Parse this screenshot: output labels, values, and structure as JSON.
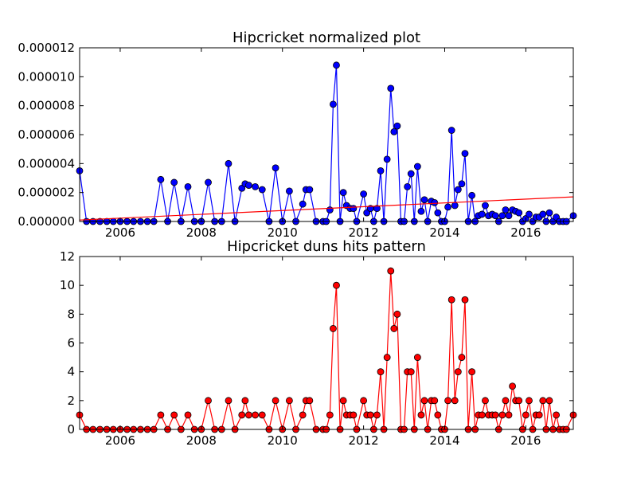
{
  "colors": {
    "blue_series": "#0000ff",
    "red_series": "#ff0000",
    "trend_line": "#ff0000",
    "marker_edge": "#000000"
  },
  "chart_data": [
    {
      "type": "line",
      "title": "Hipcricket normalized plot",
      "xlabel": "",
      "ylabel": "",
      "xlim": [
        2005.0,
        2017.17
      ],
      "ylim": [
        0,
        1.2e-05
      ],
      "yticks": [
        0,
        2e-06,
        4e-06,
        6e-06,
        8e-06,
        1e-05,
        1.2e-05
      ],
      "ytick_labels": [
        "0.000000",
        "0.000002",
        "0.000004",
        "0.000006",
        "0.000008",
        "0.000010",
        "0.000012"
      ],
      "xticks": [
        2006,
        2008,
        2010,
        2012,
        2014,
        2016
      ],
      "xtick_labels": [
        "2006",
        "2008",
        "2010",
        "2012",
        "2014",
        "2016"
      ],
      "grid": false,
      "series": [
        {
          "marker": "circle",
          "color": "#0000ff",
          "x": [
            2005.0,
            2005.17,
            2005.33,
            2005.5,
            2005.67,
            2005.83,
            2006.0,
            2006.17,
            2006.33,
            2006.5,
            2006.67,
            2006.83,
            2007.0,
            2007.17,
            2007.33,
            2007.5,
            2007.67,
            2007.83,
            2008.0,
            2008.17,
            2008.33,
            2008.5,
            2008.67,
            2008.83,
            2009.0,
            2009.08,
            2009.17,
            2009.33,
            2009.5,
            2009.67,
            2009.83,
            2010.0,
            2010.17,
            2010.33,
            2010.5,
            2010.58,
            2010.67,
            2010.83,
            2011.0,
            2011.08,
            2011.17,
            2011.25,
            2011.33,
            2011.42,
            2011.5,
            2011.58,
            2011.67,
            2011.75,
            2011.83,
            2012.0,
            2012.08,
            2012.17,
            2012.25,
            2012.33,
            2012.42,
            2012.5,
            2012.58,
            2012.67,
            2012.75,
            2012.83,
            2012.92,
            2013.0,
            2013.08,
            2013.17,
            2013.25,
            2013.33,
            2013.42,
            2013.5,
            2013.58,
            2013.67,
            2013.75,
            2013.83,
            2013.92,
            2014.0,
            2014.08,
            2014.17,
            2014.25,
            2014.33,
            2014.42,
            2014.5,
            2014.58,
            2014.67,
            2014.75,
            2014.83,
            2014.92,
            2015.0,
            2015.08,
            2015.17,
            2015.25,
            2015.33,
            2015.42,
            2015.5,
            2015.58,
            2015.67,
            2015.75,
            2015.83,
            2015.92,
            2016.0,
            2016.08,
            2016.17,
            2016.25,
            2016.33,
            2016.42,
            2016.5,
            2016.58,
            2016.67,
            2016.75,
            2016.83,
            2016.92,
            2017.0,
            2017.17
          ],
          "values": [
            3.5e-06,
            0,
            0,
            0,
            0,
            0,
            0,
            0,
            0,
            0,
            0,
            0,
            2.9e-06,
            0,
            2.7e-06,
            0,
            2.4e-06,
            0,
            0,
            2.7e-06,
            0,
            0,
            4e-06,
            0,
            2.3e-06,
            2.6e-06,
            2.5e-06,
            2.4e-06,
            2.2e-06,
            0,
            3.7e-06,
            0,
            2.1e-06,
            0,
            1.2e-06,
            2.2e-06,
            2.2e-06,
            0,
            0,
            0,
            8e-07,
            8.1e-06,
            1.08e-05,
            0,
            2e-06,
            1.1e-06,
            9e-07,
            9e-07,
            0,
            1.9e-06,
            6e-07,
            9e-07,
            0,
            9e-07,
            3.5e-06,
            0,
            4.3e-06,
            9.2e-06,
            6.2e-06,
            6.6e-06,
            0,
            0,
            2.4e-06,
            3.3e-06,
            0,
            3.8e-06,
            7e-07,
            1.5e-06,
            0,
            1.4e-06,
            1.3e-06,
            6e-07,
            0,
            0,
            1e-06,
            6.3e-06,
            1.1e-06,
            2.2e-06,
            2.6e-06,
            4.7e-06,
            0,
            1.8e-06,
            0,
            4e-07,
            5e-07,
            1.1e-06,
            4e-07,
            5e-07,
            4e-07,
            0,
            4e-07,
            8e-07,
            4e-07,
            8e-07,
            7e-07,
            6e-07,
            0,
            2e-07,
            5e-07,
            0,
            3e-07,
            3e-07,
            5e-07,
            0,
            6e-07,
            0,
            3e-07,
            0,
            0,
            0,
            4e-07
          ]
        },
        {
          "color": "#ff0000",
          "x": [
            2005.0,
            2017.17
          ],
          "values": [
            1e-07,
            1.7e-06
          ]
        }
      ]
    },
    {
      "type": "line",
      "title": "Hipcricket duns hits pattern",
      "xlabel": "",
      "ylabel": "",
      "xlim": [
        2005.0,
        2017.17
      ],
      "ylim": [
        0,
        12
      ],
      "yticks": [
        0,
        2,
        4,
        6,
        8,
        10,
        12
      ],
      "ytick_labels": [
        "0",
        "2",
        "4",
        "6",
        "8",
        "10",
        "12"
      ],
      "xticks": [
        2006,
        2008,
        2010,
        2012,
        2014,
        2016
      ],
      "xtick_labels": [
        "2006",
        "2008",
        "2010",
        "2012",
        "2014",
        "2016"
      ],
      "grid": false,
      "series": [
        {
          "marker": "circle",
          "color": "#ff0000",
          "x": [
            2005.0,
            2005.17,
            2005.33,
            2005.5,
            2005.67,
            2005.83,
            2006.0,
            2006.17,
            2006.33,
            2006.5,
            2006.67,
            2006.83,
            2007.0,
            2007.17,
            2007.33,
            2007.5,
            2007.67,
            2007.83,
            2008.0,
            2008.17,
            2008.33,
            2008.5,
            2008.67,
            2008.83,
            2009.0,
            2009.08,
            2009.17,
            2009.33,
            2009.5,
            2009.67,
            2009.83,
            2010.0,
            2010.17,
            2010.33,
            2010.5,
            2010.58,
            2010.67,
            2010.83,
            2011.0,
            2011.08,
            2011.17,
            2011.25,
            2011.33,
            2011.42,
            2011.5,
            2011.58,
            2011.67,
            2011.75,
            2011.83,
            2012.0,
            2012.08,
            2012.17,
            2012.25,
            2012.33,
            2012.42,
            2012.5,
            2012.58,
            2012.67,
            2012.75,
            2012.83,
            2012.92,
            2013.0,
            2013.08,
            2013.17,
            2013.25,
            2013.33,
            2013.42,
            2013.5,
            2013.58,
            2013.67,
            2013.75,
            2013.83,
            2013.92,
            2014.0,
            2014.08,
            2014.17,
            2014.25,
            2014.33,
            2014.42,
            2014.5,
            2014.58,
            2014.67,
            2014.75,
            2014.83,
            2014.92,
            2015.0,
            2015.08,
            2015.17,
            2015.25,
            2015.33,
            2015.42,
            2015.5,
            2015.58,
            2015.67,
            2015.75,
            2015.83,
            2015.92,
            2016.0,
            2016.08,
            2016.17,
            2016.25,
            2016.33,
            2016.42,
            2016.5,
            2016.58,
            2016.67,
            2016.75,
            2016.83,
            2016.92,
            2017.0,
            2017.17
          ],
          "values": [
            1,
            0,
            0,
            0,
            0,
            0,
            0,
            0,
            0,
            0,
            0,
            0,
            1,
            0,
            1,
            0,
            1,
            0,
            0,
            2,
            0,
            0,
            2,
            0,
            1,
            2,
            1,
            1,
            1,
            0,
            2,
            0,
            2,
            0,
            1,
            2,
            2,
            0,
            0,
            0,
            1,
            7,
            10,
            0,
            2,
            1,
            1,
            1,
            0,
            2,
            1,
            1,
            0,
            1,
            4,
            0,
            5,
            11,
            7,
            8,
            0,
            0,
            4,
            4,
            0,
            5,
            1,
            2,
            0,
            2,
            2,
            1,
            0,
            0,
            2,
            9,
            2,
            4,
            5,
            9,
            0,
            4,
            0,
            1,
            1,
            2,
            1,
            1,
            1,
            0,
            1,
            2,
            1,
            3,
            2,
            2,
            0,
            1,
            2,
            0,
            1,
            1,
            2,
            0,
            2,
            0,
            1,
            0,
            0,
            0,
            1
          ]
        }
      ]
    }
  ]
}
